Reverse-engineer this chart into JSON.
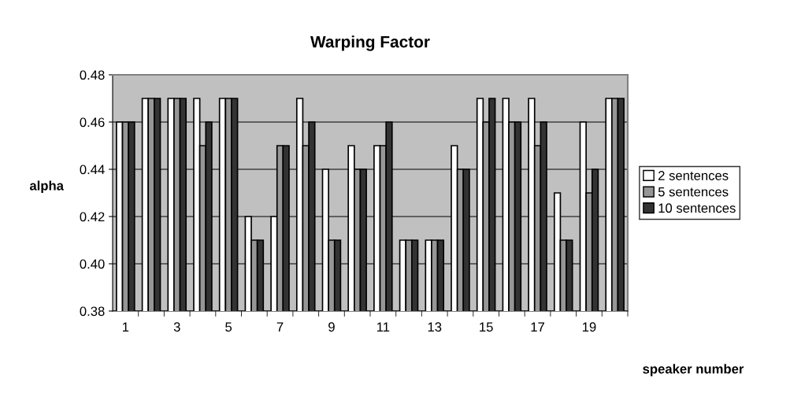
{
  "chart_data": {
    "type": "bar",
    "title": "Warping Factor",
    "xlabel": "speaker number",
    "ylabel": "alpha",
    "categories": [
      "1",
      null,
      "3",
      null,
      "5",
      null,
      "7",
      null,
      "9",
      null,
      "11",
      null,
      "13",
      null,
      "15",
      null,
      "17",
      null,
      "19",
      null
    ],
    "series": [
      {
        "name": "2 sentences",
        "color": "#ffffff",
        "values": [
          0.46,
          0.47,
          0.47,
          0.47,
          0.47,
          0.42,
          0.42,
          0.47,
          0.44,
          0.45,
          0.45,
          0.41,
          0.41,
          0.45,
          0.47,
          0.47,
          0.47,
          0.43,
          0.46,
          0.47
        ]
      },
      {
        "name": "5 sentences",
        "color": "#969696",
        "values": [
          0.46,
          0.47,
          0.47,
          0.45,
          0.47,
          0.41,
          0.45,
          0.45,
          0.41,
          0.44,
          0.45,
          0.41,
          0.41,
          0.44,
          0.46,
          0.46,
          0.45,
          0.41,
          0.43,
          0.47
        ]
      },
      {
        "name": "10 sentences",
        "color": "#333333",
        "values": [
          0.46,
          0.47,
          0.47,
          0.46,
          0.47,
          0.41,
          0.45,
          0.46,
          0.41,
          0.44,
          0.46,
          0.41,
          0.41,
          0.44,
          0.47,
          0.46,
          0.46,
          0.41,
          0.44,
          0.47
        ]
      }
    ],
    "ylim": [
      0.38,
      0.48
    ],
    "yticks": [
      {
        "value": 0.38,
        "label": "0.38"
      },
      {
        "value": 0.4,
        "label": "0.40"
      },
      {
        "value": 0.42,
        "label": "0.42"
      },
      {
        "value": 0.44,
        "label": "0.44"
      },
      {
        "value": 0.46,
        "label": "0.46"
      },
      {
        "value": 0.48,
        "label": "0.48"
      }
    ],
    "grid": "y",
    "legend": "right"
  }
}
